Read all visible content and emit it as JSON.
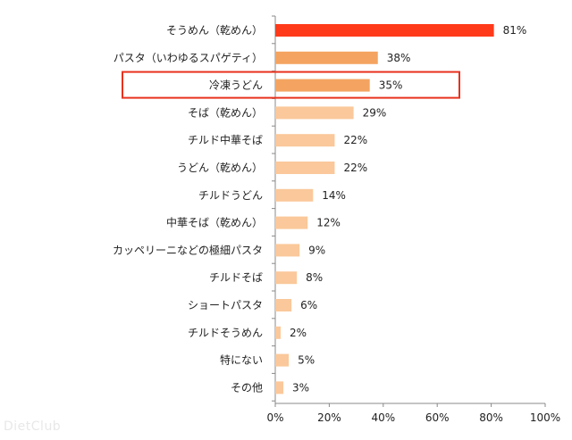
{
  "chart_data": {
    "type": "bar",
    "orientation": "horizontal",
    "categories": [
      "そうめん（乾めん）",
      "パスタ（いわゆるスパゲティ）",
      "冷凍うどん",
      "そば（乾めん）",
      "チルド中華そば",
      "うどん（乾めん）",
      "チルドうどん",
      "中華そば（乾めん）",
      "カッペリーニなどの極細パスタ",
      "チルドそば",
      "ショートパスタ",
      "チルドそうめん",
      "特にない",
      "その他"
    ],
    "values": [
      81,
      38,
      35,
      29,
      22,
      22,
      14,
      12,
      9,
      8,
      6,
      2,
      5,
      3
    ],
    "value_labels": [
      "81%",
      "38%",
      "35%",
      "29%",
      "22%",
      "22%",
      "14%",
      "12%",
      "9%",
      "8%",
      "6%",
      "2%",
      "5%",
      "3%"
    ],
    "xlim": [
      0,
      100
    ],
    "x_ticks": [
      "0%",
      "20%",
      "40%",
      "60%",
      "80%",
      "100%"
    ],
    "grid": false,
    "highlight_index": 2,
    "colors": {
      "top": "#ff3a1a",
      "mid": "#f4a460",
      "rest": "#fac89a",
      "highlight_box": "#e8321e",
      "axis": "#888888"
    }
  },
  "watermark": "DietClub"
}
